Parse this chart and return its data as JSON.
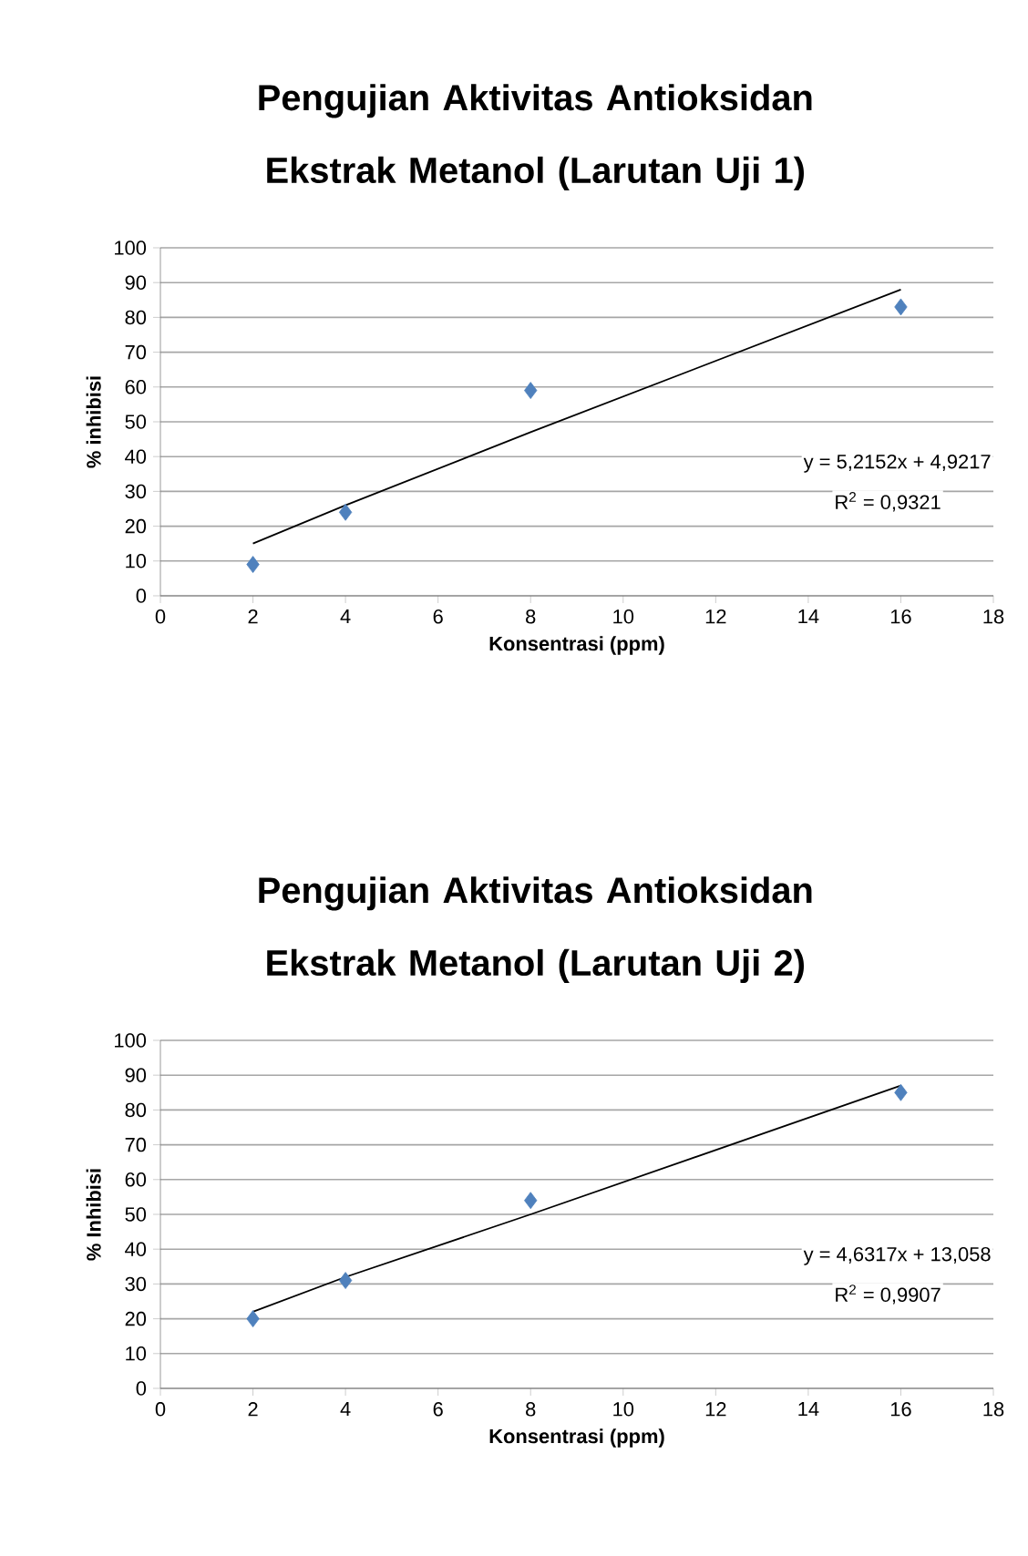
{
  "chart_data": [
    {
      "type": "scatter",
      "title": "Pengujian Aktivitas Antioksidan Ekstrak Metanol (Larutan Uji 1)",
      "xlabel": "Konsentrasi (ppm)",
      "ylabel": "% inhibisi",
      "x": [
        2,
        4,
        8,
        16
      ],
      "series": [
        {
          "color": "#4f81bd",
          "values": [
            9,
            24,
            59,
            83
          ],
          "marker": "diamond"
        },
        {
          "type": "line",
          "color": "#000000",
          "values": [
            15,
            26,
            47,
            88
          ],
          "marker": "none"
        }
      ],
      "annotations": [
        "y = 5,2152x + 4,9217",
        "R$^{2}$ = 0,9321"
      ],
      "xlim": [
        0,
        18
      ],
      "xticks": [
        0,
        2,
        4,
        6,
        8,
        10,
        12,
        14,
        16,
        18
      ],
      "ylim": [
        0,
        100
      ],
      "yticks": [
        0,
        10,
        20,
        30,
        40,
        50,
        60,
        70,
        80,
        90,
        100
      ],
      "grid": "y"
    },
    {
      "type": "scatter",
      "title": "Pengujian Aktivitas Antioksidan Ekstrak Metanol (Larutan Uji 2)",
      "xlabel": "Konsentrasi (ppm)",
      "ylabel": "% Inhibisi",
      "x": [
        2,
        4,
        8,
        16
      ],
      "series": [
        {
          "color": "#4f81bd",
          "values": [
            20,
            31,
            54,
            85
          ],
          "marker": "diamond"
        },
        {
          "type": "line",
          "color": "#000000",
          "values": [
            22,
            32,
            50,
            87
          ],
          "marker": "none"
        }
      ],
      "annotations": [
        "y = 4,6317x + 13,058",
        "R$^{2}$ = 0,9907"
      ],
      "xlim": [
        0,
        18
      ],
      "xticks": [
        0,
        2,
        4,
        6,
        8,
        10,
        12,
        14,
        16,
        18
      ],
      "ylim": [
        0,
        100
      ],
      "yticks": [
        0,
        10,
        20,
        30,
        40,
        50,
        60,
        70,
        80,
        90,
        100
      ],
      "grid": "y"
    }
  ]
}
